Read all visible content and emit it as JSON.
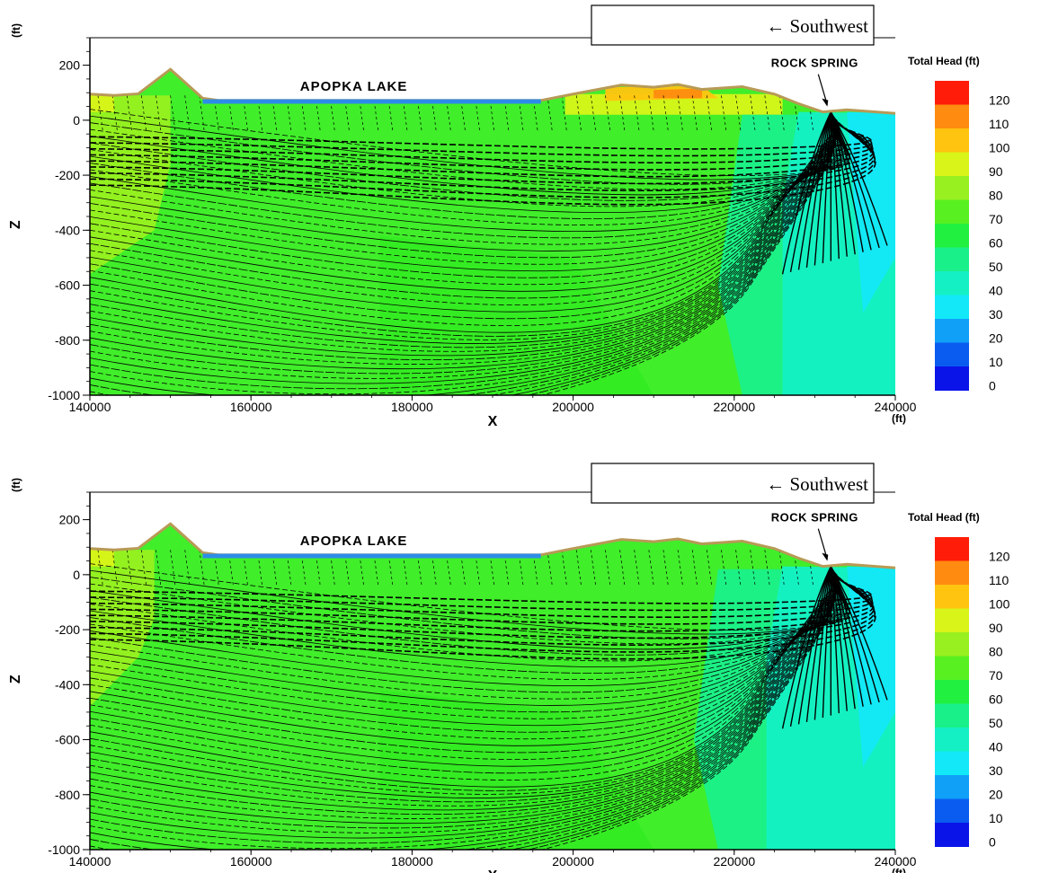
{
  "colors": {
    "scale": [
      "#0a14e8",
      "#0a5cf0",
      "#10a0f8",
      "#12e8f8",
      "#14f0c4",
      "#1af08a",
      "#22f040",
      "#58f020",
      "#98f020",
      "#d8f418",
      "#ffc410",
      "#ff8c10",
      "#ff1c08"
    ],
    "lake": "#2d8ce8",
    "topo": "#b89a56"
  },
  "chart_data": [
    {
      "type": "heatmap",
      "title": "",
      "xlabel": "X",
      "ylabel": "Z",
      "x_unit": "(ft)",
      "y_unit": "(ft)",
      "xlim": [
        140000,
        240000
      ],
      "ylim": [
        -1000,
        300
      ],
      "x_ticks": [
        140000,
        160000,
        180000,
        200000,
        220000,
        240000
      ],
      "y_ticks": [
        200,
        0,
        -200,
        -400,
        -600,
        -800,
        -1000
      ],
      "x_tick_labels": [
        "140000",
        "160000",
        "180000",
        "200000",
        "220000",
        "240000"
      ],
      "y_tick_labels": [
        "200",
        "0",
        "-200",
        "-400",
        "-600",
        "-800",
        "-1000"
      ],
      "surface_profile": [
        [
          140000,
          95
        ],
        [
          143000,
          90
        ],
        [
          146000,
          96
        ],
        [
          150000,
          185
        ],
        [
          154000,
          80
        ],
        [
          156000,
          72
        ],
        [
          196000,
          72
        ],
        [
          200000,
          95
        ],
        [
          206000,
          128
        ],
        [
          210000,
          120
        ],
        [
          213000,
          130
        ],
        [
          216000,
          112
        ],
        [
          221000,
          122
        ],
        [
          225000,
          95
        ],
        [
          228000,
          60
        ],
        [
          231000,
          30
        ],
        [
          234000,
          38
        ],
        [
          240000,
          25
        ]
      ],
      "lake": {
        "label": "APOPKA LAKE",
        "x": [
          154000,
          196000
        ],
        "elevation": 68
      },
      "spring": {
        "label": "ROCK SPRING",
        "x": 232000,
        "elevation": 30
      },
      "direction_label": "← Southwest",
      "head_zones": [
        {
          "head": 80,
          "polygon": [
            [
              140000,
              90
            ],
            [
              150000,
              90
            ],
            [
              150000,
              -160
            ],
            [
              148000,
              -400
            ],
            [
              140000,
              -560
            ]
          ]
        },
        {
          "head": 90,
          "polygon": [
            [
              140000,
              92
            ],
            [
              143000,
              88
            ],
            [
              143000,
              30
            ],
            [
              140000,
              30
            ]
          ]
        },
        {
          "head": 90,
          "polygon": [
            [
              199000,
              95
            ],
            [
              226000,
              95
            ],
            [
              226000,
              20
            ],
            [
              199000,
              20
            ]
          ]
        },
        {
          "head": 100,
          "polygon": [
            [
              204000,
              120
            ],
            [
              216000,
              125
            ],
            [
              218000,
              80
            ],
            [
              204000,
              70
            ]
          ]
        },
        {
          "head": 110,
          "polygon": [
            [
              210000,
              110
            ],
            [
              216000,
              115
            ],
            [
              216000,
              80
            ],
            [
              210000,
              80
            ]
          ]
        },
        {
          "head": 50,
          "polygon": [
            [
              221000,
              20
            ],
            [
              240000,
              20
            ],
            [
              240000,
              -1000
            ],
            [
              221000,
              -1000
            ],
            [
              218000,
              -600
            ]
          ]
        },
        {
          "head": 40,
          "polygon": [
            [
              228000,
              30
            ],
            [
              240000,
              25
            ],
            [
              240000,
              -1000
            ],
            [
              226000,
              -1000
            ],
            [
              226000,
              -300
            ]
          ]
        },
        {
          "head": 30,
          "polygon": [
            [
              234000,
              30
            ],
            [
              240000,
              25
            ],
            [
              240000,
              -500
            ],
            [
              236000,
              -700
            ]
          ]
        }
      ]
    },
    {
      "type": "heatmap",
      "title": "",
      "xlabel": "X",
      "ylabel": "Z",
      "x_unit": "(ft)",
      "y_unit": "(ft)",
      "xlim": [
        140000,
        240000
      ],
      "ylim": [
        -1000,
        300
      ],
      "x_ticks": [
        140000,
        160000,
        180000,
        200000,
        220000,
        240000
      ],
      "y_ticks": [
        200,
        0,
        -200,
        -400,
        -600,
        -800,
        -1000
      ],
      "x_tick_labels": [
        "140000",
        "160000",
        "180000",
        "200000",
        "220000",
        "240000"
      ],
      "y_tick_labels": [
        "200",
        "0",
        "-200",
        "-400",
        "-600",
        "-800",
        "-1000"
      ],
      "surface_profile": [
        [
          140000,
          95
        ],
        [
          143000,
          90
        ],
        [
          146000,
          96
        ],
        [
          150000,
          185
        ],
        [
          154000,
          80
        ],
        [
          156000,
          72
        ],
        [
          196000,
          72
        ],
        [
          200000,
          95
        ],
        [
          206000,
          128
        ],
        [
          210000,
          120
        ],
        [
          213000,
          130
        ],
        [
          216000,
          112
        ],
        [
          221000,
          122
        ],
        [
          225000,
          95
        ],
        [
          228000,
          60
        ],
        [
          231000,
          30
        ],
        [
          234000,
          38
        ],
        [
          240000,
          25
        ]
      ],
      "lake": {
        "label": "APOPKA LAKE",
        "x": [
          154000,
          196000
        ],
        "elevation": 68
      },
      "spring": {
        "label": "ROCK SPRING",
        "x": 232000,
        "elevation": 30
      },
      "direction_label": "← Southwest",
      "head_zones": [
        {
          "head": 80,
          "polygon": [
            [
              140000,
              90
            ],
            [
              148000,
              90
            ],
            [
              148000,
              -160
            ],
            [
              146000,
              -300
            ],
            [
              140000,
              -480
            ]
          ]
        },
        {
          "head": 90,
          "polygon": [
            [
              140000,
              92
            ],
            [
              143000,
              88
            ],
            [
              143000,
              30
            ],
            [
              140000,
              30
            ]
          ]
        },
        {
          "head": 50,
          "polygon": [
            [
              218000,
              20
            ],
            [
              240000,
              20
            ],
            [
              240000,
              -1000
            ],
            [
              218000,
              -1000
            ],
            [
              215000,
              -600
            ]
          ]
        },
        {
          "head": 40,
          "polygon": [
            [
              226000,
              30
            ],
            [
              240000,
              25
            ],
            [
              240000,
              -1000
            ],
            [
              224000,
              -1000
            ],
            [
              224000,
              -300
            ]
          ]
        },
        {
          "head": 30,
          "polygon": [
            [
              234000,
              30
            ],
            [
              240000,
              25
            ],
            [
              240000,
              -500
            ],
            [
              236000,
              -700
            ]
          ]
        }
      ]
    }
  ],
  "legend": {
    "title": "Total Head (ft)",
    "values": [
      "120",
      "110",
      "100",
      "90",
      "80",
      "70",
      "60",
      "50",
      "40",
      "30",
      "20",
      "10",
      "0"
    ]
  }
}
